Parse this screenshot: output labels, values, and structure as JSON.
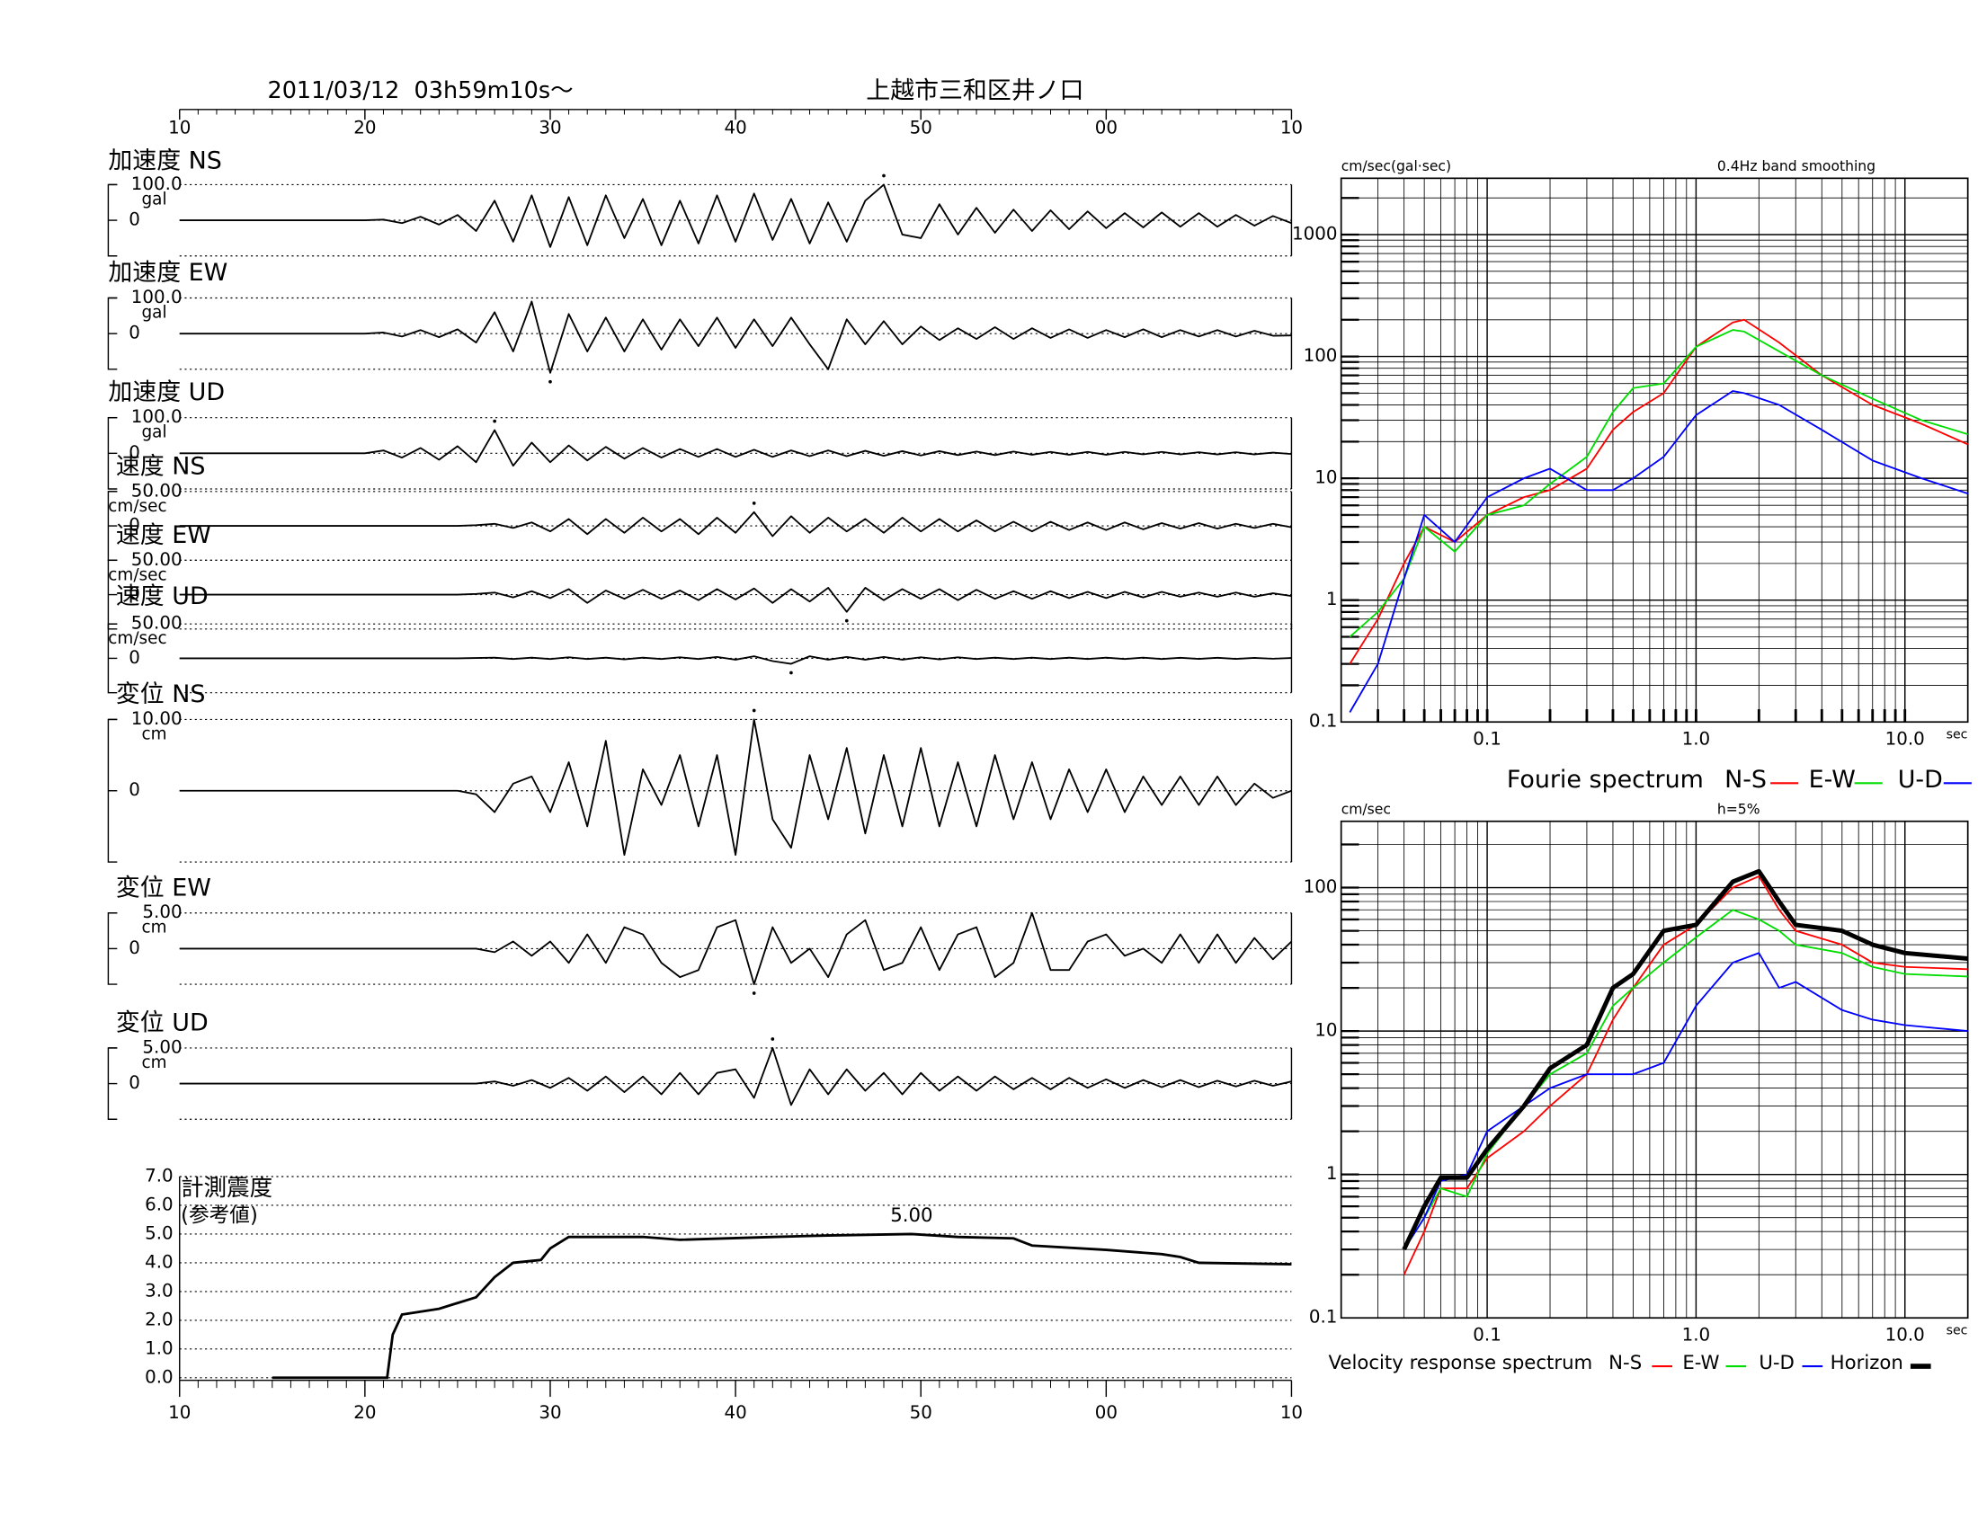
{
  "chart_data": [
    {
      "type": "waveforms",
      "title": "上越市三和区井ノ口",
      "subtitle": "2011/03/12  03h59m10s〜",
      "xlim": [
        10,
        70
      ],
      "xticks": [
        10,
        20,
        30,
        40,
        50,
        {
          "value": 60,
          "label": "00"
        },
        {
          "value": 70,
          "label": "10"
        }
      ],
      "x": [
        10,
        20,
        21,
        22,
        23,
        24,
        25,
        26,
        27,
        28,
        29,
        30,
        31,
        32,
        33,
        34,
        35,
        36,
        37,
        38,
        39,
        40,
        41,
        42,
        43,
        44,
        45,
        46,
        47,
        48,
        49,
        50,
        51,
        52,
        53,
        54,
        55,
        56,
        57,
        58,
        59,
        60,
        61,
        62,
        63,
        64,
        65,
        66,
        67,
        68,
        69,
        70
      ],
      "series": [
        {
          "name": "加速度 NS",
          "unit": "gal",
          "color": "#000000",
          "ylim": [
            -100,
            100
          ],
          "yticks": [
            0,
            {
              "value": 100,
              "label": "100.0"
            }
          ],
          "values": [
            0,
            0,
            2,
            -8,
            10,
            -12,
            15,
            -30,
            55,
            -60,
            70,
            -75,
            65,
            -70,
            70,
            -50,
            60,
            -70,
            55,
            -65,
            70,
            -60,
            75,
            -55,
            60,
            -65,
            50,
            -60,
            55,
            100,
            -40,
            -50,
            45,
            -40,
            35,
            -35,
            30,
            -30,
            28,
            -25,
            25,
            -22,
            20,
            -20,
            22,
            -18,
            20,
            -18,
            15,
            -15,
            12,
            -8
          ]
        },
        {
          "name": "加速度 EW",
          "unit": "gal",
          "color": "#000000",
          "ylim": [
            -100,
            100
          ],
          "yticks": [
            0,
            {
              "value": 100,
              "label": "100.0"
            }
          ],
          "values": [
            0,
            0,
            3,
            -8,
            10,
            -10,
            12,
            -25,
            60,
            -50,
            90,
            -110,
            55,
            -50,
            45,
            -50,
            40,
            -45,
            40,
            -35,
            45,
            -40,
            40,
            -35,
            45,
            -30,
            -100,
            40,
            -30,
            35,
            -30,
            20,
            -18,
            15,
            -15,
            18,
            -15,
            15,
            -12,
            12,
            -12,
            10,
            -10,
            12,
            -10,
            10,
            -8,
            10,
            -8,
            8,
            -6,
            -5
          ]
        },
        {
          "name": "加速度 UD",
          "unit": "gal",
          "color": "#000000",
          "ylim": [
            -100,
            100
          ],
          "yticks": [
            0,
            {
              "value": 100,
              "label": "100.0"
            }
          ],
          "values": [
            0,
            0,
            8,
            -12,
            15,
            -18,
            20,
            -25,
            65,
            -35,
            30,
            -25,
            22,
            -20,
            18,
            -15,
            15,
            -12,
            12,
            -10,
            12,
            -10,
            10,
            -10,
            8,
            -8,
            8,
            -8,
            7,
            -7,
            6,
            -6,
            6,
            -5,
            5,
            -5,
            5,
            -4,
            4,
            -4,
            4,
            -4,
            4,
            -3,
            4,
            -3,
            3,
            -3,
            3,
            -3,
            2,
            -2
          ]
        },
        {
          "name": "速度 NS",
          "unit": "cm/sec",
          "color": "#000000",
          "ylim": [
            -50,
            50
          ],
          "yticks": [
            0,
            {
              "value": 50,
              "label": "50.00"
            }
          ],
          "values": [
            0,
            0,
            0,
            0,
            0,
            0,
            0,
            1,
            3,
            -3,
            5,
            -8,
            10,
            -12,
            10,
            -10,
            12,
            -8,
            10,
            -12,
            12,
            -10,
            20,
            -15,
            14,
            -10,
            12,
            -8,
            10,
            -10,
            12,
            -8,
            10,
            -8,
            8,
            -8,
            6,
            -8,
            6,
            -6,
            5,
            -6,
            5,
            -5,
            4,
            -4,
            4,
            -4,
            3,
            -3,
            3,
            -2
          ]
        },
        {
          "name": "速度 EW",
          "unit": "cm/sec",
          "color": "#000000",
          "ylim": [
            -50,
            50
          ],
          "yticks": [
            0,
            {
              "value": 50,
              "label": "50.00"
            }
          ],
          "values": [
            0,
            0,
            0,
            0,
            0,
            0,
            0,
            1,
            3,
            -4,
            5,
            -5,
            8,
            -12,
            6,
            -6,
            7,
            -6,
            6,
            -8,
            8,
            -7,
            9,
            -12,
            8,
            -10,
            10,
            -25,
            10,
            -8,
            8,
            -6,
            8,
            -8,
            7,
            -6,
            5,
            -6,
            5,
            -5,
            4,
            -5,
            4,
            -4,
            4,
            -3,
            3,
            -3,
            3,
            -3,
            2,
            -2
          ]
        },
        {
          "name": "速度 UD",
          "unit": "cm/sec",
          "color": "#000000",
          "ylim": [
            -50,
            50
          ],
          "yticks": [
            0,
            {
              "value": 50,
              "label": "50.00"
            }
          ],
          "values": [
            0,
            0,
            0,
            0,
            0,
            0,
            0,
            0.5,
            1,
            -1,
            1,
            -1,
            1.5,
            -1,
            1,
            -1.5,
            1,
            -1,
            1.5,
            -1,
            2,
            -2,
            3,
            -4,
            -8,
            3,
            -2,
            2,
            -2,
            2,
            -2,
            1.5,
            -1.5,
            1.5,
            -1,
            1,
            -1,
            1,
            -1,
            1,
            -1,
            1,
            -1,
            1,
            -1,
            0.8,
            -0.8,
            0.8,
            -0.8,
            0.6,
            -0.6,
            0.5
          ]
        },
        {
          "name": "変位 NS",
          "unit": "cm",
          "color": "#000000",
          "ylim": [
            -10,
            10
          ],
          "yticks": [
            0,
            {
              "value": 10,
              "label": "10.00"
            }
          ],
          "values": [
            0,
            0,
            0,
            0,
            0,
            0,
            0,
            -0.5,
            -3,
            1,
            2,
            -3,
            4,
            -5,
            7,
            -9,
            3,
            -2,
            5,
            -5,
            5,
            -9,
            10,
            -4,
            -8,
            5,
            -4,
            6,
            -6,
            5,
            -5,
            6,
            -5,
            4,
            -5,
            5,
            -4,
            4,
            -4,
            3,
            -3,
            3,
            -3,
            2,
            -2,
            2,
            -2,
            2,
            -2,
            1,
            -1,
            0
          ]
        },
        {
          "name": "変位 EW",
          "unit": "cm",
          "color": "#000000",
          "ylim": [
            -5,
            5
          ],
          "yticks": [
            0,
            {
              "value": 5,
              "label": "5.00"
            }
          ],
          "values": [
            0,
            0,
            0,
            0,
            0,
            0,
            0,
            0,
            -0.5,
            1,
            -1,
            1,
            -2,
            2,
            -2,
            3,
            2,
            -2,
            -4,
            -3,
            3,
            4,
            -5,
            3,
            -2,
            0,
            -4,
            2,
            4,
            -3,
            -2,
            3,
            -3,
            2,
            3,
            -4,
            -2,
            5,
            -3,
            -3,
            1,
            2,
            -1,
            0,
            -2,
            2,
            -2,
            2,
            -2,
            1.5,
            -1.5,
            1
          ]
        },
        {
          "name": "変位 UD",
          "unit": "cm",
          "color": "#000000",
          "ylim": [
            -5,
            5
          ],
          "yticks": [
            0,
            {
              "value": 5,
              "label": "5.00"
            }
          ],
          "values": [
            0,
            0,
            0,
            0,
            0,
            0,
            0,
            0,
            0.3,
            -0.3,
            0.5,
            -0.6,
            0.8,
            -1,
            1,
            -1.2,
            1,
            -1.5,
            1.5,
            -1.5,
            1.5,
            2,
            -2,
            5,
            -3,
            2,
            -1.5,
            2,
            -1,
            1.5,
            -1.5,
            1.5,
            -1,
            1,
            -1,
            1,
            -0.8,
            0.8,
            -0.8,
            0.8,
            -0.6,
            0.6,
            -0.6,
            0.5,
            -0.5,
            0.5,
            -0.5,
            0.4,
            -0.4,
            0.4,
            -0.3,
            0.3
          ]
        }
      ]
    },
    {
      "type": "line",
      "title": "計測震度",
      "subtitle": "(参考値)",
      "color": "#000000",
      "xlim": [
        10,
        70
      ],
      "xticks": [
        10,
        20,
        30,
        40,
        50,
        {
          "value": 60,
          "label": "00"
        },
        {
          "value": 70,
          "label": "10"
        }
      ],
      "ylim": [
        0,
        7
      ],
      "yticks": [
        {
          "value": 0,
          "label": "0.0"
        },
        {
          "value": 1,
          "label": "1.0"
        },
        {
          "value": 2,
          "label": "2.0"
        },
        {
          "value": 3,
          "label": "3.0"
        },
        {
          "value": 4,
          "label": "4.0"
        },
        {
          "value": 5,
          "label": "5.0"
        },
        {
          "value": 6,
          "label": "6.0"
        },
        {
          "value": 7,
          "label": "7.0"
        }
      ],
      "grid": true,
      "x": [
        15,
        21.2,
        21.5,
        22,
        24,
        26,
        27,
        28,
        29.5,
        30,
        31,
        35,
        37,
        42,
        45,
        49.5,
        52,
        55,
        56,
        60,
        63,
        64,
        65,
        70
      ],
      "values": [
        0,
        0,
        1.5,
        2.2,
        2.4,
        2.8,
        3.5,
        4.0,
        4.1,
        4.5,
        4.9,
        4.9,
        4.8,
        4.9,
        4.95,
        5.0,
        4.9,
        4.85,
        4.6,
        4.45,
        4.3,
        4.2,
        4.0,
        3.95
      ],
      "annotation": {
        "text": "5.00",
        "x": 49.5,
        "y": 5.0
      }
    },
    {
      "type": "loglog",
      "title": "Fourie spectrum",
      "subtitle": "0.4Hz band smoothing",
      "ylabel": "cm/sec(gal·sec)",
      "xlabel": "sec",
      "xlim": [
        0.02,
        20
      ],
      "ylim": [
        0.1,
        2900
      ],
      "xticks": [
        0.1,
        {
          "value": 1,
          "label": "1.0"
        },
        {
          "value": 10,
          "label": "10.0"
        }
      ],
      "yticks": [
        0.1,
        1,
        10,
        100,
        1000
      ],
      "grid": true,
      "x": [
        0.022,
        0.03,
        0.04,
        0.05,
        0.07,
        0.1,
        0.15,
        0.2,
        0.3,
        0.4,
        0.5,
        0.7,
        1,
        1.5,
        1.7,
        2.5,
        4,
        7,
        12,
        20
      ],
      "series": [
        {
          "name": "N-S",
          "color": "#ff0000",
          "values": [
            0.3,
            0.7,
            2,
            4,
            3,
            5,
            7,
            8,
            12,
            25,
            35,
            50,
            120,
            190,
            200,
            130,
            70,
            40,
            28,
            19
          ]
        },
        {
          "name": "E-W",
          "color": "#00dd00",
          "values": [
            0.5,
            0.8,
            1.5,
            4,
            2.5,
            5,
            6,
            9,
            15,
            35,
            55,
            60,
            120,
            165,
            160,
            110,
            70,
            45,
            30,
            23
          ]
        },
        {
          "name": "U-D",
          "color": "#0000ff",
          "values": [
            0.12,
            0.3,
            1.5,
            5,
            3,
            7,
            10,
            12,
            8,
            8,
            10,
            15,
            33,
            52,
            50,
            40,
            25,
            14,
            10,
            7.5
          ]
        }
      ]
    },
    {
      "type": "loglog",
      "title": "Velocity response spectrum",
      "subtitle": "h=5%",
      "ylabel": "cm/sec",
      "xlabel": "sec",
      "xlim": [
        0.02,
        20
      ],
      "ylim": [
        0.1,
        290
      ],
      "xticks": [
        0.1,
        {
          "value": 1,
          "label": "1.0"
        },
        {
          "value": 10,
          "label": "10.0"
        }
      ],
      "yticks": [
        0.1,
        1,
        10,
        100
      ],
      "grid": true,
      "x": [
        0.04,
        0.05,
        0.06,
        0.08,
        0.1,
        0.15,
        0.2,
        0.3,
        0.4,
        0.5,
        0.7,
        1,
        1.5,
        2,
        2.5,
        3,
        5,
        7,
        10,
        20
      ],
      "series": [
        {
          "name": "N-S",
          "color": "#ff0000",
          "values": [
            0.2,
            0.4,
            0.8,
            0.8,
            1.3,
            2,
            3,
            5,
            12,
            20,
            40,
            55,
            100,
            120,
            70,
            50,
            40,
            30,
            28,
            27
          ]
        },
        {
          "name": "E-W",
          "color": "#00dd00",
          "values": [
            0.3,
            0.5,
            0.8,
            0.7,
            1.4,
            3,
            5,
            7,
            15,
            20,
            30,
            45,
            70,
            60,
            50,
            40,
            35,
            28,
            25,
            24
          ]
        },
        {
          "name": "U-D",
          "color": "#0000ff",
          "values": [
            0.3,
            0.5,
            0.9,
            1,
            2,
            3,
            4,
            5,
            5,
            5,
            6,
            15,
            30,
            35,
            20,
            22,
            14,
            12,
            11,
            10
          ]
        },
        {
          "name": "Horizon",
          "color": "#000000",
          "values": [
            0.3,
            0.6,
            0.95,
            0.95,
            1.5,
            3,
            5.5,
            8,
            20,
            25,
            50,
            55,
            110,
            130,
            80,
            55,
            50,
            40,
            35,
            32
          ]
        }
      ]
    }
  ]
}
